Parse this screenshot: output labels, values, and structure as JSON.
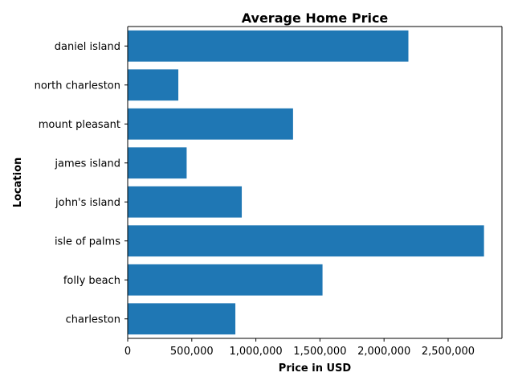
{
  "chart_data": {
    "type": "bar",
    "orientation": "horizontal",
    "title": "Average Home Price",
    "xlabel": "Price in USD",
    "ylabel": "Location",
    "categories": [
      "charleston",
      "folly beach",
      "isle of palms",
      "john's island",
      "james island",
      "mount pleasant",
      "north charleston",
      "daniel island"
    ],
    "values": [
      840000,
      1520000,
      2780000,
      890000,
      460000,
      1290000,
      395000,
      2190000
    ],
    "xlim": [
      0,
      2920000
    ],
    "xticks": [
      0,
      500000,
      1000000,
      1500000,
      2000000,
      2500000
    ],
    "xtick_labels": [
      "0",
      "500,000",
      "1,000,000",
      "1,500,000",
      "2,000,000",
      "2,500,000"
    ],
    "grid": false,
    "bar_color": "#1f77b4"
  }
}
